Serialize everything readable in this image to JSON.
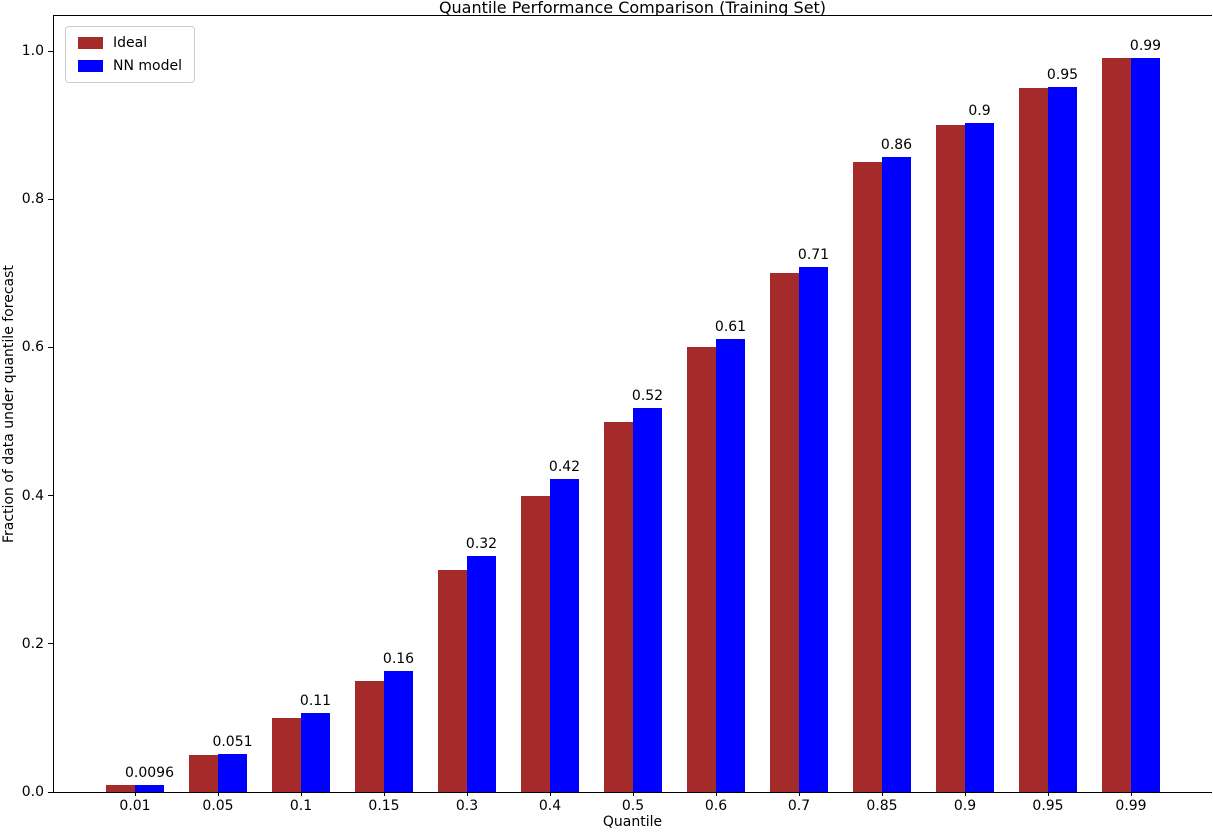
{
  "figure": {
    "background_color": "#ffffff",
    "axis_color": "#000000"
  },
  "legend": {
    "position": "upper-left",
    "items": [
      {
        "label": "Ideal",
        "color": "#a52a2a"
      },
      {
        "label": "NN model",
        "color": "#0000ff"
      }
    ]
  },
  "chart_data": {
    "type": "bar",
    "title": "Quantile Performance Comparison (Training Set)",
    "xlabel": "Quantile",
    "ylabel": "Fraction of data under quantile forecast",
    "categories": [
      "0.01",
      "0.05",
      "0.1",
      "0.15",
      "0.3",
      "0.4",
      "0.5",
      "0.6",
      "0.7",
      "0.85",
      "0.9",
      "0.95",
      "0.99"
    ],
    "series": [
      {
        "name": "Ideal",
        "color": "#a52a2a",
        "values": [
          0.01,
          0.05,
          0.1,
          0.15,
          0.3,
          0.4,
          0.5,
          0.6,
          0.7,
          0.85,
          0.9,
          0.95,
          0.99
        ]
      },
      {
        "name": "NN model",
        "color": "#0000ff",
        "values": [
          0.0096,
          0.051,
          0.107,
          0.163,
          0.318,
          0.422,
          0.518,
          0.611,
          0.709,
          0.857,
          0.903,
          0.951,
          0.99
        ],
        "bar_labels": [
          "0.0096",
          "0.051",
          "0.11",
          "0.16",
          "0.32",
          "0.42",
          "0.52",
          "0.61",
          "0.71",
          "0.86",
          "0.9",
          "0.95",
          "0.99"
        ]
      }
    ],
    "yticks": [
      "0.0",
      "0.2",
      "0.4",
      "0.6",
      "0.8",
      "1.0"
    ],
    "ylim": [
      0,
      1.05
    ],
    "grid": false,
    "legend_position": "upper left"
  }
}
